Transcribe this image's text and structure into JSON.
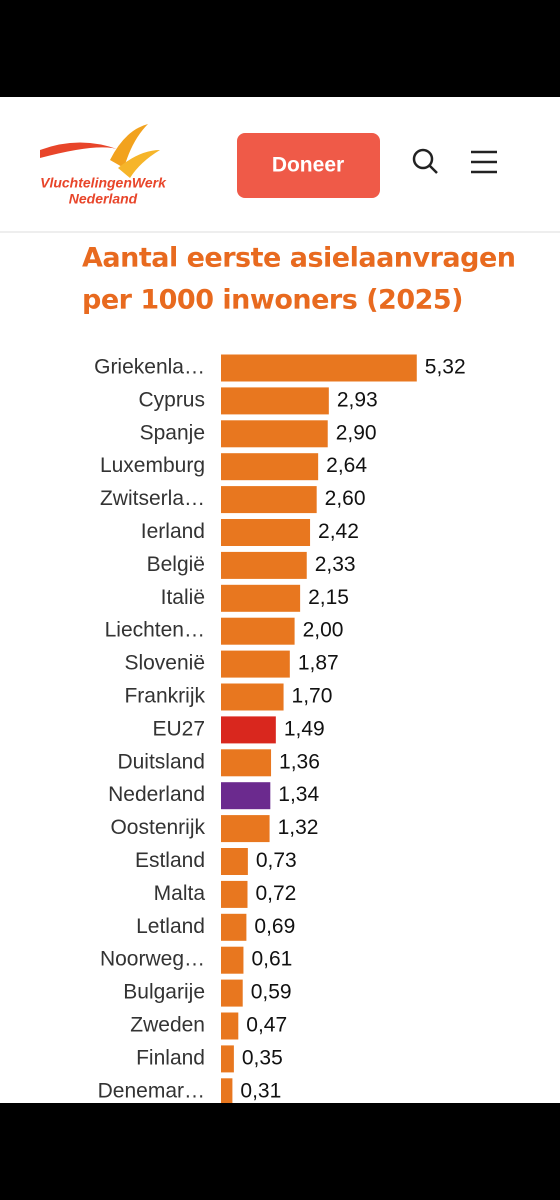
{
  "header": {
    "logo_line1": "VluchtelingenWerk",
    "logo_line2": "Nederland",
    "button": "Doneer"
  },
  "chart_data": {
    "type": "bar",
    "orientation": "horizontal",
    "title_lines": [
      "Aantal eerste asielaanvragen",
      "per 1000 inwoners (2025)"
    ],
    "categories": [
      "Griekenla…",
      "Cyprus",
      "Spanje",
      "Luxemburg",
      "Zwitserla…",
      "Ierland",
      "België",
      "Italië",
      "Liechten…",
      "Slovenië",
      "Frankrijk",
      "EU27",
      "Duitsland",
      "Nederland",
      "Oostenrijk",
      "Estland",
      "Malta",
      "Letland",
      "Noorweg…",
      "Bulgarije",
      "Zweden",
      "Finland",
      "Denemar…"
    ],
    "values": [
      5.32,
      2.93,
      2.9,
      2.64,
      2.6,
      2.42,
      2.33,
      2.15,
      2.0,
      1.87,
      1.7,
      1.49,
      1.36,
      1.34,
      1.32,
      0.73,
      0.72,
      0.69,
      0.61,
      0.59,
      0.47,
      0.35,
      0.31
    ],
    "value_labels": [
      "5,32",
      "2,93",
      "2,90",
      "2,64",
      "2,60",
      "2,42",
      "2,33",
      "2,15",
      "2,00",
      "1,87",
      "1,70",
      "1,49",
      "1,36",
      "1,34",
      "1,32",
      "0,73",
      "0,72",
      "0,69",
      "0,61",
      "0,59",
      "0,47",
      "0,35",
      "0,31"
    ],
    "colors": [
      "#e8771f",
      "#e8771f",
      "#e8771f",
      "#e8771f",
      "#e8771f",
      "#e8771f",
      "#e8771f",
      "#e8771f",
      "#e8771f",
      "#e8771f",
      "#e8771f",
      "#d9271e",
      "#e8771f",
      "#6b2a8e",
      "#e8771f",
      "#e8771f",
      "#e8771f",
      "#e8771f",
      "#e8771f",
      "#e8771f",
      "#e8771f",
      "#e8771f",
      "#e8771f"
    ]
  }
}
